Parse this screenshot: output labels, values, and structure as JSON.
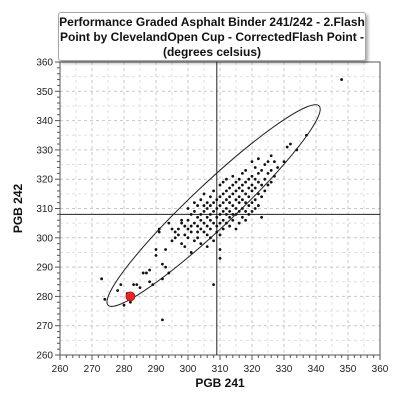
{
  "chart_data": {
    "type": "scatter",
    "title_lines": [
      "Performance Graded Asphalt Binder 241/242 - 2.Flash",
      "Point by ClevelandOpen Cup - CorrectedFlash Point -",
      "(degrees celsius)"
    ],
    "xlabel": "PGB 241",
    "ylabel": "PGB 242",
    "xlim": [
      260,
      360
    ],
    "ylim": [
      260,
      360
    ],
    "x_ticks": [
      "260",
      "270",
      "280",
      "290",
      "300",
      "310",
      "320",
      "330",
      "340",
      "350",
      "360"
    ],
    "y_ticks": [
      "260",
      "270",
      "280",
      "290",
      "300",
      "310",
      "320",
      "330",
      "340",
      "350",
      "360"
    ],
    "grid": true,
    "reference_lines": {
      "x": 309,
      "y": 308
    },
    "highlight_point": {
      "x": 282,
      "y": 280,
      "color": "#ee2222"
    },
    "ellipse": {
      "center_x": 308,
      "center_y": 311,
      "end1": [
        276,
        276
      ],
      "end2": [
        342,
        344
      ],
      "minor_half_width_x": 8
    },
    "points": [
      [
        273,
        286
      ],
      [
        274,
        279
      ],
      [
        278,
        282
      ],
      [
        279,
        284
      ],
      [
        280,
        277
      ],
      [
        281,
        281
      ],
      [
        282,
        278
      ],
      [
        283,
        284
      ],
      [
        284,
        284
      ],
      [
        285,
        283
      ],
      [
        286,
        288
      ],
      [
        287,
        288
      ],
      [
        288,
        285
      ],
      [
        288,
        289
      ],
      [
        289,
        284
      ],
      [
        290,
        294
      ],
      [
        290,
        296
      ],
      [
        291,
        302
      ],
      [
        291,
        303
      ],
      [
        292,
        272
      ],
      [
        292,
        286
      ],
      [
        292,
        291
      ],
      [
        293,
        290
      ],
      [
        293,
        296
      ],
      [
        294,
        288
      ],
      [
        294,
        305
      ],
      [
        295,
        299
      ],
      [
        295,
        303
      ],
      [
        296,
        300
      ],
      [
        296,
        302
      ],
      [
        297,
        301
      ],
      [
        297,
        303
      ],
      [
        298,
        298
      ],
      [
        298,
        305
      ],
      [
        298,
        306
      ],
      [
        299,
        297
      ],
      [
        299,
        301
      ],
      [
        299,
        304
      ],
      [
        300,
        300
      ],
      [
        300,
        303
      ],
      [
        300,
        306
      ],
      [
        300,
        310
      ],
      [
        301,
        295
      ],
      [
        301,
        302
      ],
      [
        301,
        304
      ],
      [
        301,
        308
      ],
      [
        302,
        299
      ],
      [
        302,
        305
      ],
      [
        302,
        309
      ],
      [
        302,
        312
      ],
      [
        303,
        300
      ],
      [
        303,
        302
      ],
      [
        303,
        304
      ],
      [
        303,
        307
      ],
      [
        303,
        311
      ],
      [
        304,
        298
      ],
      [
        304,
        303
      ],
      [
        304,
        306
      ],
      [
        304,
        308
      ],
      [
        304,
        313
      ],
      [
        305,
        302
      ],
      [
        305,
        305
      ],
      [
        305,
        309
      ],
      [
        305,
        311
      ],
      [
        305,
        315
      ],
      [
        306,
        297
      ],
      [
        306,
        301
      ],
      [
        306,
        304
      ],
      [
        306,
        307
      ],
      [
        306,
        310
      ],
      [
        306,
        312
      ],
      [
        307,
        300
      ],
      [
        307,
        303
      ],
      [
        307,
        306
      ],
      [
        307,
        308
      ],
      [
        307,
        311
      ],
      [
        307,
        314
      ],
      [
        308,
        284
      ],
      [
        308,
        299
      ],
      [
        308,
        305
      ],
      [
        308,
        309
      ],
      [
        308,
        312
      ],
      [
        308,
        316
      ],
      [
        309,
        302
      ],
      [
        309,
        304
      ],
      [
        309,
        307
      ],
      [
        309,
        310
      ],
      [
        309,
        313
      ],
      [
        310,
        293
      ],
      [
        310,
        296
      ],
      [
        310,
        301
      ],
      [
        310,
        305
      ],
      [
        310,
        308
      ],
      [
        310,
        311
      ],
      [
        310,
        314
      ],
      [
        310,
        318
      ],
      [
        311,
        303
      ],
      [
        311,
        306
      ],
      [
        311,
        309
      ],
      [
        311,
        312
      ],
      [
        311,
        315
      ],
      [
        311,
        319
      ],
      [
        312,
        305
      ],
      [
        312,
        308
      ],
      [
        312,
        310
      ],
      [
        312,
        313
      ],
      [
        312,
        316
      ],
      [
        312,
        320
      ],
      [
        313,
        304
      ],
      [
        313,
        307
      ],
      [
        313,
        309
      ],
      [
        313,
        312
      ],
      [
        313,
        314
      ],
      [
        313,
        317
      ],
      [
        314,
        306
      ],
      [
        314,
        308
      ],
      [
        314,
        311
      ],
      [
        314,
        315
      ],
      [
        314,
        318
      ],
      [
        314,
        321
      ],
      [
        315,
        303
      ],
      [
        315,
        308
      ],
      [
        315,
        310
      ],
      [
        315,
        313
      ],
      [
        315,
        316
      ],
      [
        315,
        319
      ],
      [
        316,
        305
      ],
      [
        316,
        309
      ],
      [
        316,
        312
      ],
      [
        316,
        314
      ],
      [
        316,
        317
      ],
      [
        316,
        320
      ],
      [
        317,
        307
      ],
      [
        317,
        310
      ],
      [
        317,
        313
      ],
      [
        317,
        316
      ],
      [
        317,
        318
      ],
      [
        317,
        322
      ],
      [
        318,
        306
      ],
      [
        318,
        309
      ],
      [
        318,
        312
      ],
      [
        318,
        315
      ],
      [
        318,
        319
      ],
      [
        318,
        323
      ],
      [
        319,
        308
      ],
      [
        319,
        311
      ],
      [
        319,
        314
      ],
      [
        319,
        317
      ],
      [
        319,
        320
      ],
      [
        320,
        309
      ],
      [
        320,
        312
      ],
      [
        320,
        316
      ],
      [
        320,
        318
      ],
      [
        320,
        321
      ],
      [
        320,
        326
      ],
      [
        321,
        310
      ],
      [
        321,
        313
      ],
      [
        321,
        317
      ],
      [
        321,
        320
      ],
      [
        321,
        324
      ],
      [
        322,
        311
      ],
      [
        322,
        315
      ],
      [
        322,
        319
      ],
      [
        322,
        322
      ],
      [
        322,
        327
      ],
      [
        323,
        307
      ],
      [
        323,
        314
      ],
      [
        323,
        318
      ],
      [
        323,
        323
      ],
      [
        324,
        316
      ],
      [
        324,
        320
      ],
      [
        324,
        325
      ],
      [
        325,
        318
      ],
      [
        325,
        322
      ],
      [
        325,
        326
      ],
      [
        326,
        319
      ],
      [
        326,
        323
      ],
      [
        326,
        328
      ],
      [
        327,
        321
      ],
      [
        327,
        326
      ],
      [
        328,
        324
      ],
      [
        330,
        326
      ],
      [
        331,
        331
      ],
      [
        332,
        332
      ],
      [
        334,
        330
      ],
      [
        337,
        335
      ],
      [
        348,
        354
      ]
    ]
  }
}
